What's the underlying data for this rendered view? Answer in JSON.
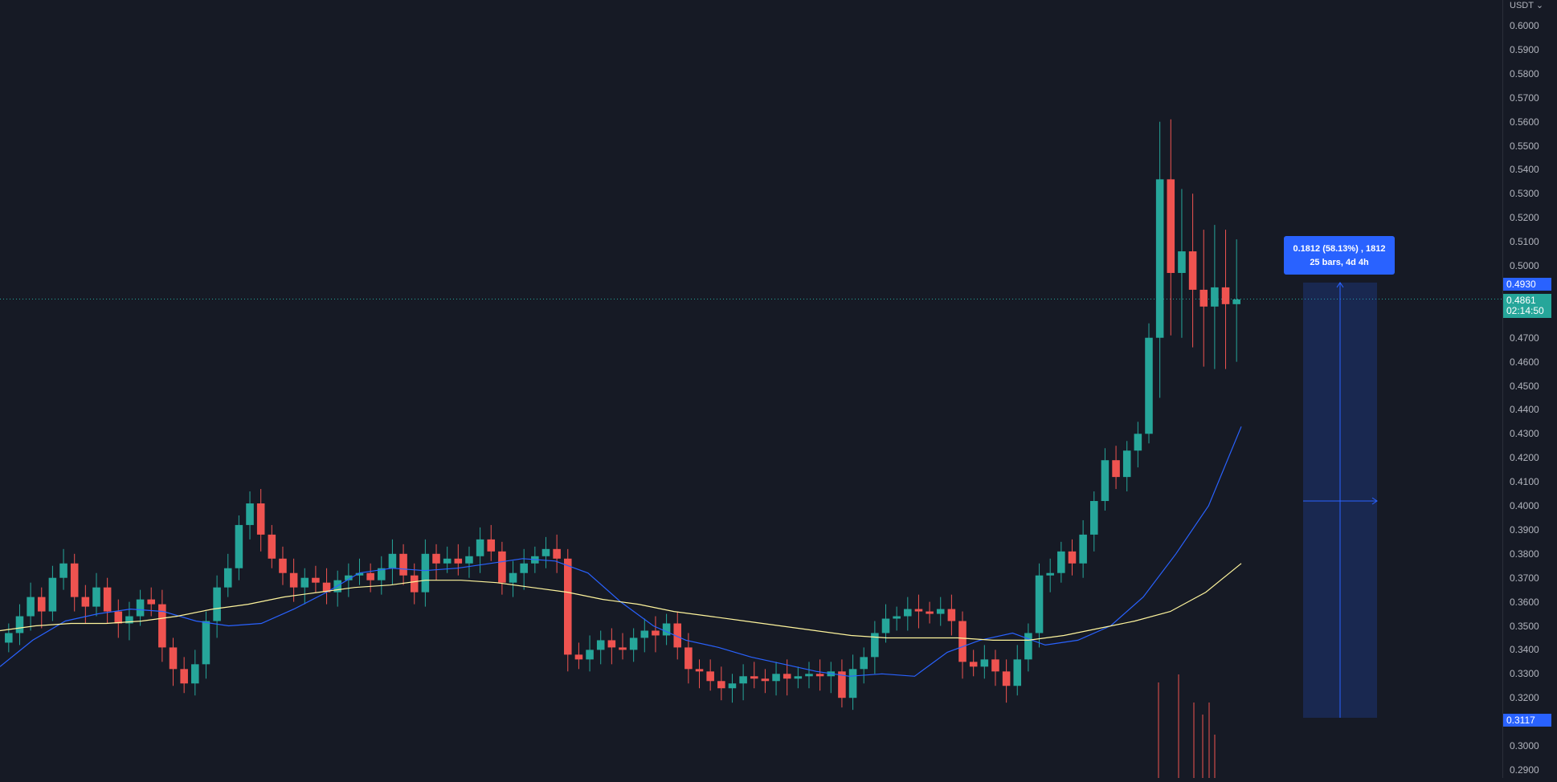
{
  "price_axis": {
    "currency": "USDT",
    "ticks": [
      "0.6000",
      "0.5900",
      "0.5800",
      "0.5700",
      "0.5600",
      "0.5500",
      "0.5400",
      "0.5300",
      "0.5200",
      "0.5100",
      "0.5000",
      "0.4800",
      "0.4700",
      "0.4600",
      "0.4500",
      "0.4400",
      "0.4300",
      "0.4200",
      "0.4100",
      "0.4000",
      "0.3900",
      "0.3800",
      "0.3700",
      "0.3600",
      "0.3500",
      "0.3400",
      "0.3300",
      "0.3200",
      "0.3000",
      "0.2900"
    ],
    "top_tag": "0.4930",
    "bottom_tag": "0.3117",
    "current_price": "0.4861",
    "countdown": "02:14:50"
  },
  "measure": {
    "line1": "0.1812 (58.13%) , 1812",
    "line2": "25 bars, 4d 4h",
    "from_price": 0.3117,
    "to_price": 0.493
  },
  "colors": {
    "background": "#161a25",
    "up": "#26a69a",
    "down": "#ef5350",
    "ma_fast": "#2962ff",
    "ma_slow": "#fff59d",
    "measure": "#2962ff"
  },
  "chart_data": {
    "type": "candlestick",
    "y_range": [
      0.286,
      0.61
    ],
    "series": [
      {
        "name": "price",
        "points": [
          0.347,
          0.354,
          0.362,
          0.356,
          0.37,
          0.376,
          0.362,
          0.358,
          0.366,
          0.356,
          0.351,
          0.354,
          0.361,
          0.359,
          0.341,
          0.332,
          0.326,
          0.334,
          0.352,
          0.366,
          0.374,
          0.392,
          0.401,
          0.388,
          0.378,
          0.372,
          0.366,
          0.37,
          0.368,
          0.364,
          0.369,
          0.371,
          0.372,
          0.369,
          0.374,
          0.38,
          0.371,
          0.364,
          0.38,
          0.376,
          0.378,
          0.376,
          0.379,
          0.386,
          0.381,
          0.368,
          0.372,
          0.376,
          0.379,
          0.382,
          0.378,
          0.338,
          0.336,
          0.34,
          0.344,
          0.341,
          0.34,
          0.345,
          0.348,
          0.346,
          0.351,
          0.341,
          0.332,
          0.331,
          0.327,
          0.324,
          0.326,
          0.329,
          0.328,
          0.327,
          0.33,
          0.328,
          0.329,
          0.33,
          0.329,
          0.331,
          0.32,
          0.332,
          0.337,
          0.347,
          0.353,
          0.354,
          0.357,
          0.356,
          0.355,
          0.357,
          0.352,
          0.335,
          0.333,
          0.336,
          0.331,
          0.325,
          0.336,
          0.347,
          0.371,
          0.372,
          0.381,
          0.376,
          0.388,
          0.402,
          0.419,
          0.412,
          0.423,
          0.43,
          0.47,
          0.536,
          0.497,
          0.506,
          0.49,
          0.483,
          0.491,
          0.484,
          0.486
        ]
      },
      {
        "name": "ma_fast",
        "points": [
          0.333,
          0.344,
          0.352,
          0.355,
          0.357,
          0.356,
          0.352,
          0.35,
          0.351,
          0.357,
          0.364,
          0.372,
          0.374,
          0.373,
          0.374,
          0.376,
          0.378,
          0.377,
          0.372,
          0.36,
          0.35,
          0.344,
          0.341,
          0.337,
          0.334,
          0.331,
          0.329,
          0.33,
          0.329,
          0.339,
          0.344,
          0.347,
          0.342,
          0.344,
          0.35,
          0.362,
          0.38,
          0.4,
          0.433
        ]
      },
      {
        "name": "ma_slow",
        "points": [
          0.348,
          0.35,
          0.351,
          0.351,
          0.352,
          0.354,
          0.357,
          0.359,
          0.362,
          0.364,
          0.366,
          0.367,
          0.369,
          0.369,
          0.368,
          0.366,
          0.364,
          0.361,
          0.359,
          0.356,
          0.354,
          0.352,
          0.35,
          0.348,
          0.346,
          0.345,
          0.345,
          0.345,
          0.344,
          0.344,
          0.346,
          0.349,
          0.352,
          0.356,
          0.364,
          0.376
        ]
      }
    ]
  }
}
